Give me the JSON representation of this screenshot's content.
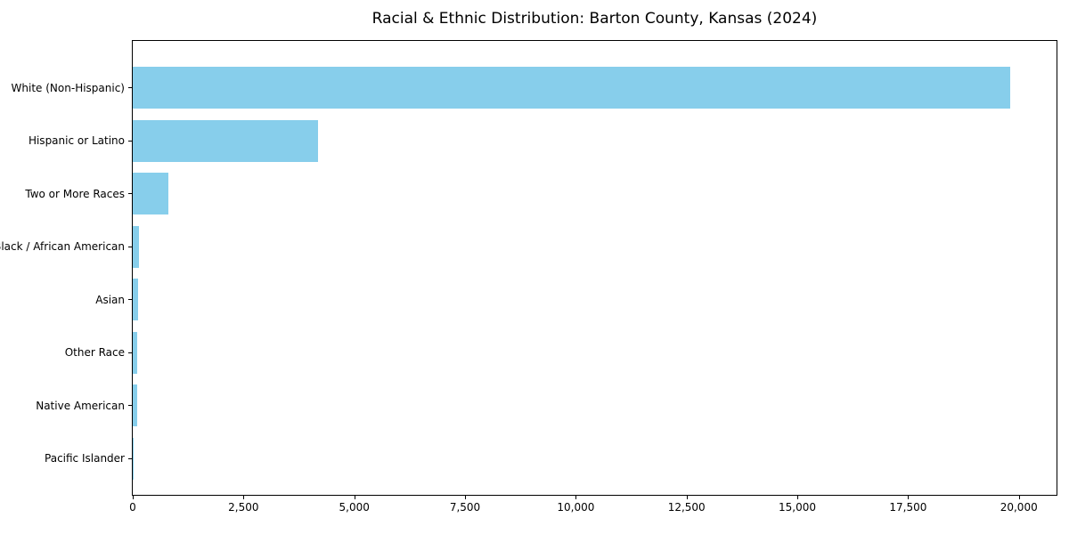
{
  "chart_data": {
    "type": "bar",
    "orientation": "horizontal",
    "title": "Racial & Ethnic Distribution: Barton County, Kansas (2024)",
    "xlabel": "",
    "ylabel": "",
    "categories": [
      "White (Non-Hispanic)",
      "Hispanic or Latino",
      "Two or More Races",
      "Black / African American",
      "Asian",
      "Other Race",
      "Native American",
      "Pacific Islander"
    ],
    "values": [
      19800,
      4180,
      800,
      150,
      115,
      105,
      95,
      10
    ],
    "xlim": [
      0,
      20850
    ],
    "x_ticks": [
      0,
      2500,
      5000,
      7500,
      10000,
      12500,
      15000,
      17500,
      20000
    ],
    "x_tick_labels": [
      "0",
      "2,500",
      "5,000",
      "7,500",
      "10,000",
      "12,500",
      "15,000",
      "17,500",
      "20,000"
    ],
    "bar_color": "#87CEEB",
    "spine_color": "#000000",
    "text_color": "#000000",
    "grid": false,
    "legend": null
  }
}
